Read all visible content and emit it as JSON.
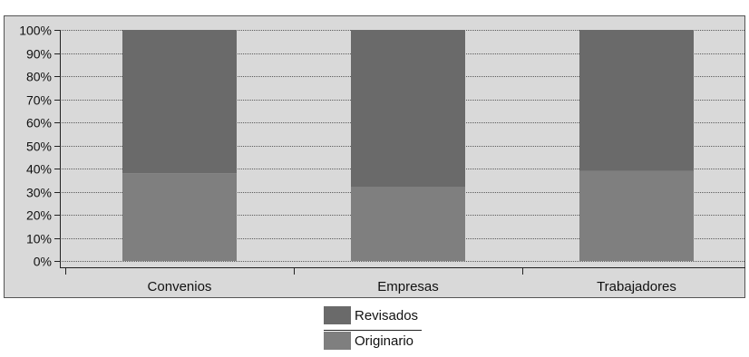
{
  "chart_data": {
    "type": "bar",
    "stacked": true,
    "percent_stacked": true,
    "categories": [
      "Convenios",
      "Empresas",
      "Trabajadores"
    ],
    "series": [
      {
        "name": "Originario",
        "values": [
          38,
          32,
          39
        ],
        "color": "#7f7f7f"
      },
      {
        "name": "Revisados",
        "values": [
          62,
          68,
          61
        ],
        "color": "#6a6a6a"
      }
    ],
    "y_ticks": [
      "0%",
      "10%",
      "20%",
      "30%",
      "40%",
      "50%",
      "60%",
      "70%",
      "80%",
      "90%",
      "100%"
    ],
    "ylim": [
      0,
      100
    ],
    "grid": true,
    "legend_position": "bottom",
    "legend_order": [
      "Revisados",
      "Originario"
    ],
    "plot_background": "#d9d9d9",
    "title": "",
    "xlabel": "",
    "ylabel": ""
  }
}
